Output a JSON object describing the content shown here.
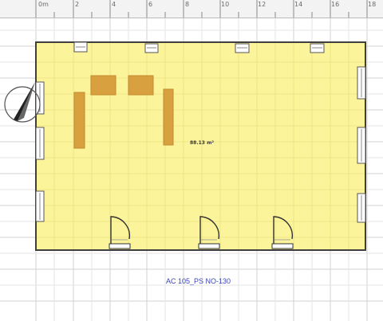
{
  "ruler": {
    "ticks": [
      "0m",
      "2",
      "4",
      "6",
      "8",
      "10",
      "12",
      "14",
      "16",
      "18"
    ]
  },
  "room": {
    "area_label": "88.13 m²",
    "fill_color": "#fbf49a",
    "wall_color": "#3f3f3f"
  },
  "caption": "AC 105_PS NO-130",
  "colors": {
    "grid": "#cfcfcf",
    "furniture": "#d9a040",
    "caption": "#3a45b5"
  },
  "icons": [
    "north-arrow-icon",
    "window-icon",
    "door-icon",
    "table-icon"
  ]
}
